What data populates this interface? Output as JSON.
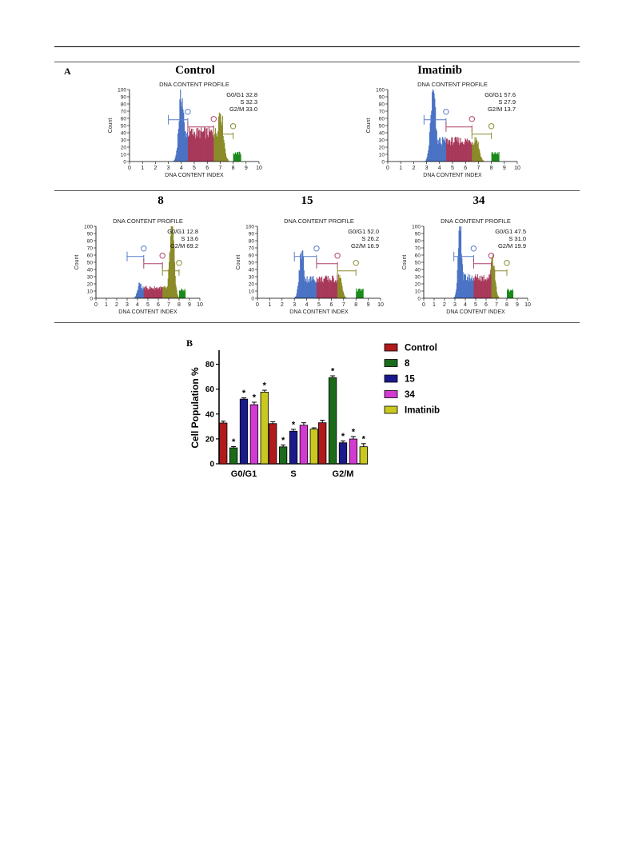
{
  "panel_a_label": "A",
  "panel_b_label": "B",
  "histograms": [
    {
      "id": "control",
      "title": "Control",
      "profile_title": "DNA CONTENT PROFILE",
      "xlabel": "DNA CONTENT INDEX",
      "ylabel": "Count",
      "stats": [
        "G0/G1 32.8",
        "S 32.3",
        "G2/M 33.0"
      ],
      "g1_peak_index": 4.0,
      "g2_peak_index": 7.0,
      "g1_height": 98,
      "g2_height": 75,
      "s_level": 42,
      "gates": {
        "g1": [
          3.0,
          4.5
        ],
        "s": [
          4.5,
          6.5
        ],
        "g2": [
          6.5,
          8.0
        ]
      }
    },
    {
      "id": "imatinib",
      "title": "Imatinib",
      "profile_title": "DNA CONTENT PROFILE",
      "xlabel": "DNA CONTENT INDEX",
      "ylabel": "Count",
      "stats": [
        "G0/G1 57.6",
        "S 27.9",
        "G2/M 13.7"
      ],
      "g1_peak_index": 3.5,
      "g2_peak_index": 6.8,
      "g1_height": 100,
      "g2_height": 35,
      "s_level": 30,
      "gates": {
        "g1": [
          2.8,
          4.5
        ],
        "s": [
          4.5,
          6.5
        ],
        "g2": [
          6.5,
          8.0
        ]
      }
    },
    {
      "id": "compound-8",
      "title": "8",
      "profile_title": "DNA CONTENT PROFILE",
      "xlabel": "DNA CONTENT INDEX",
      "ylabel": "Count",
      "stats": [
        "G0/G1 12.8",
        "S 13.6",
        "G2/M 69.2"
      ],
      "g1_peak_index": 4.2,
      "g2_peak_index": 7.3,
      "g1_height": 22,
      "g2_height": 100,
      "s_level": 15,
      "gates": {
        "g1": [
          3.0,
          4.6
        ],
        "s": [
          4.6,
          6.4
        ],
        "g2": [
          6.4,
          8.0
        ]
      }
    },
    {
      "id": "compound-15",
      "title": "15",
      "profile_title": "DNA CONTENT PROFILE",
      "xlabel": "DNA CONTENT INDEX",
      "ylabel": "Count",
      "stats": [
        "G0/G1 52.0",
        "S 26.2",
        "G2/M 16.9"
      ],
      "g1_peak_index": 3.6,
      "g2_peak_index": 6.6,
      "g1_height": 68,
      "g2_height": 34,
      "s_level": 28,
      "gates": {
        "g1": [
          3.0,
          4.8
        ],
        "s": [
          4.8,
          6.5
        ],
        "g2": [
          6.5,
          8.0
        ]
      }
    },
    {
      "id": "compound-34",
      "title": "34",
      "profile_title": "DNA CONTENT PROFILE",
      "xlabel": "DNA CONTENT INDEX",
      "ylabel": "Count",
      "stats": [
        "G0/G1 47.5",
        "S 31.0",
        "G2/M 19.9"
      ],
      "g1_peak_index": 3.5,
      "g2_peak_index": 6.6,
      "g1_height": 100,
      "g2_height": 62,
      "s_level": 30,
      "gates": {
        "g1": [
          2.9,
          4.8
        ],
        "s": [
          4.8,
          6.5
        ],
        "g2": [
          6.5,
          8.0
        ]
      }
    }
  ],
  "chart_data": {
    "type": "bar",
    "ylabel": "Cell Population %",
    "xlabel": "",
    "ylim": [
      0,
      90
    ],
    "yticks": [
      0,
      20,
      40,
      60,
      80
    ],
    "categories": [
      "G0/G1",
      "S",
      "G2/M"
    ],
    "series": [
      {
        "name": "Control",
        "color": "#b01a1a",
        "values": [
          32.8,
          32.3,
          33.0
        ],
        "errors": [
          1.5,
          1.5,
          2.0
        ],
        "significant": [
          false,
          false,
          false
        ]
      },
      {
        "name": "8",
        "color": "#1b6b1b",
        "values": [
          12.8,
          13.6,
          69.2
        ],
        "errors": [
          1.0,
          1.5,
          1.5
        ],
        "significant": [
          true,
          true,
          true
        ]
      },
      {
        "name": "15",
        "color": "#1a1a8c",
        "values": [
          52.0,
          26.2,
          16.9
        ],
        "errors": [
          1.0,
          1.5,
          1.5
        ],
        "significant": [
          true,
          true,
          true
        ]
      },
      {
        "name": "34",
        "color": "#d23ad2",
        "values": [
          47.5,
          31.0,
          19.9
        ],
        "errors": [
          2.0,
          2.0,
          2.0
        ],
        "significant": [
          true,
          false,
          true
        ]
      },
      {
        "name": "Imatinib",
        "color": "#c8c81e",
        "values": [
          57.6,
          27.9,
          13.7
        ],
        "errors": [
          1.5,
          1.0,
          2.5
        ],
        "significant": [
          true,
          false,
          true
        ]
      }
    ],
    "significance_marker": "*",
    "legend_position": "right",
    "x_tick_ticks": [
      0,
      1,
      2,
      3,
      4,
      5,
      6,
      7,
      8,
      9,
      10
    ],
    "y_tick_ticks": [
      0,
      10,
      20,
      30,
      40,
      50,
      60,
      70,
      80,
      90,
      100
    ]
  },
  "colors": {
    "g1_fill": "#4a72c4",
    "s_fill": "#a8385a",
    "g2_fill": "#8a8a28",
    "tail_fill": "#1a8a1a",
    "g1_gate": "#5a7cc8",
    "s_gate": "#b0406a",
    "g2_gate": "#8a8a30"
  }
}
